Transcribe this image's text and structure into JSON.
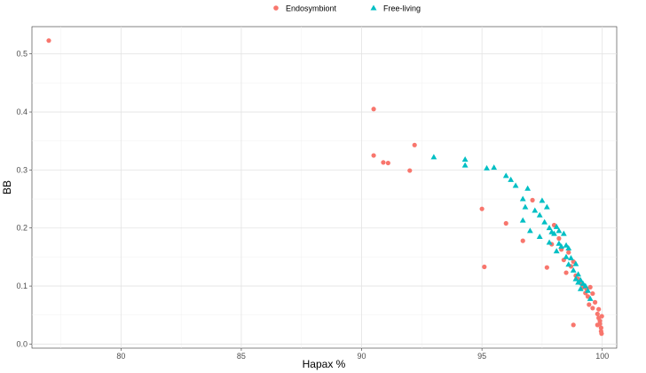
{
  "chart_data": {
    "type": "scatter",
    "xlabel": "Hapax %",
    "ylabel": "BB",
    "xlim": [
      76.3,
      100.6
    ],
    "ylim": [
      -0.007,
      0.547
    ],
    "x_ticks": [
      80,
      85,
      90,
      95,
      100
    ],
    "y_ticks": [
      0.0,
      0.1,
      0.2,
      0.3,
      0.4,
      0.5
    ],
    "grid": true,
    "legend_position": "top",
    "series": [
      {
        "name": "Endosymbiont",
        "marker": "circle",
        "color": "#F8766D",
        "points": [
          [
            77.0,
            0.523
          ],
          [
            90.5,
            0.405
          ],
          [
            90.5,
            0.325
          ],
          [
            90.9,
            0.313
          ],
          [
            91.1,
            0.312
          ],
          [
            92.0,
            0.299
          ],
          [
            92.2,
            0.343
          ],
          [
            95.0,
            0.233
          ],
          [
            95.1,
            0.133
          ],
          [
            96.0,
            0.208
          ],
          [
            96.7,
            0.178
          ],
          [
            97.1,
            0.248
          ],
          [
            97.7,
            0.132
          ],
          [
            97.9,
            0.172
          ],
          [
            98.0,
            0.205
          ],
          [
            98.2,
            0.182
          ],
          [
            98.3,
            0.163
          ],
          [
            98.4,
            0.145
          ],
          [
            98.5,
            0.123
          ],
          [
            98.6,
            0.158
          ],
          [
            98.7,
            0.134
          ],
          [
            98.8,
            0.142
          ],
          [
            98.9,
            0.118
          ],
          [
            99.0,
            0.112
          ],
          [
            99.1,
            0.105
          ],
          [
            99.2,
            0.098
          ],
          [
            99.3,
            0.088
          ],
          [
            99.35,
            0.095
          ],
          [
            99.4,
            0.082
          ],
          [
            99.45,
            0.068
          ],
          [
            99.5,
            0.098
          ],
          [
            99.6,
            0.087
          ],
          [
            99.7,
            0.072
          ],
          [
            99.8,
            0.052
          ],
          [
            99.85,
            0.045
          ],
          [
            99.9,
            0.04
          ],
          [
            99.9,
            0.035
          ],
          [
            99.95,
            0.028
          ],
          [
            99.95,
            0.022
          ],
          [
            99.97,
            0.018
          ],
          [
            99.98,
            0.048
          ],
          [
            99.8,
            0.033
          ],
          [
            99.85,
            0.06
          ],
          [
            99.6,
            0.062
          ],
          [
            98.8,
            0.033
          ]
        ]
      },
      {
        "name": "Free-living",
        "marker": "triangle",
        "color": "#00BFC4",
        "points": [
          [
            93.0,
            0.322
          ],
          [
            94.3,
            0.318
          ],
          [
            94.3,
            0.308
          ],
          [
            95.2,
            0.303
          ],
          [
            95.5,
            0.304
          ],
          [
            96.0,
            0.29
          ],
          [
            96.2,
            0.283
          ],
          [
            96.4,
            0.273
          ],
          [
            96.7,
            0.25
          ],
          [
            96.7,
            0.213
          ],
          [
            96.9,
            0.268
          ],
          [
            96.8,
            0.236
          ],
          [
            97.0,
            0.195
          ],
          [
            97.2,
            0.23
          ],
          [
            97.4,
            0.222
          ],
          [
            97.4,
            0.185
          ],
          [
            97.5,
            0.247
          ],
          [
            97.6,
            0.21
          ],
          [
            97.7,
            0.236
          ],
          [
            97.8,
            0.2
          ],
          [
            97.8,
            0.175
          ],
          [
            97.9,
            0.193
          ],
          [
            98.0,
            0.19
          ],
          [
            98.1,
            0.202
          ],
          [
            98.1,
            0.16
          ],
          [
            98.2,
            0.173
          ],
          [
            98.2,
            0.195
          ],
          [
            98.3,
            0.168
          ],
          [
            98.4,
            0.19
          ],
          [
            98.5,
            0.17
          ],
          [
            98.5,
            0.15
          ],
          [
            98.6,
            0.165
          ],
          [
            98.7,
            0.148
          ],
          [
            98.8,
            0.127
          ],
          [
            98.9,
            0.138
          ],
          [
            98.9,
            0.112
          ],
          [
            99.0,
            0.12
          ],
          [
            99.1,
            0.11
          ],
          [
            99.2,
            0.104
          ],
          [
            99.3,
            0.1
          ],
          [
            99.4,
            0.092
          ],
          [
            99.5,
            0.078
          ],
          [
            99.0,
            0.106
          ],
          [
            99.1,
            0.095
          ],
          [
            98.6,
            0.137
          ]
        ]
      }
    ]
  }
}
